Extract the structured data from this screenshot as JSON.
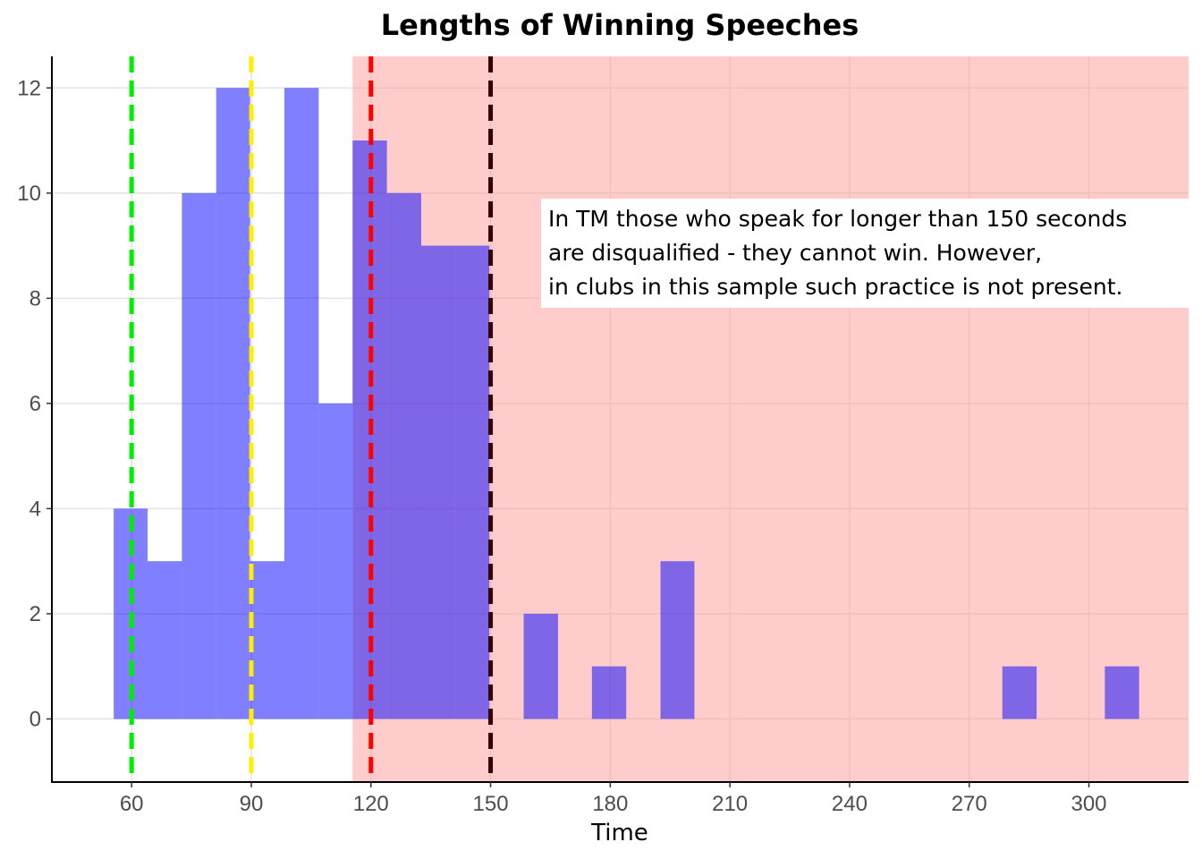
{
  "chart_data": {
    "type": "bar",
    "title": "Lengths of Winning Speeches",
    "xlabel": "Time",
    "ylabel": "",
    "xlim": [
      40,
      325
    ],
    "ylim": [
      -1.2,
      12.6
    ],
    "x_ticks": [
      60,
      90,
      120,
      150,
      180,
      210,
      240,
      270,
      300
    ],
    "y_ticks": [
      0,
      2,
      4,
      6,
      8,
      10,
      12
    ],
    "grid": true,
    "bins": [
      {
        "start": 55.5,
        "end": 64.0,
        "count": 4
      },
      {
        "start": 64.0,
        "end": 72.6,
        "count": 3
      },
      {
        "start": 72.6,
        "end": 81.2,
        "count": 10
      },
      {
        "start": 81.2,
        "end": 89.7,
        "count": 12
      },
      {
        "start": 89.7,
        "end": 98.3,
        "count": 3
      },
      {
        "start": 98.3,
        "end": 106.9,
        "count": 12
      },
      {
        "start": 106.9,
        "end": 115.4,
        "count": 6
      },
      {
        "start": 115.4,
        "end": 124.0,
        "count": 11
      },
      {
        "start": 124.0,
        "end": 132.6,
        "count": 10
      },
      {
        "start": 132.6,
        "end": 141.1,
        "count": 9
      },
      {
        "start": 141.1,
        "end": 149.7,
        "count": 9
      },
      {
        "start": 149.7,
        "end": 158.3,
        "count": 0
      },
      {
        "start": 158.3,
        "end": 166.9,
        "count": 2
      },
      {
        "start": 166.9,
        "end": 175.4,
        "count": 0
      },
      {
        "start": 175.4,
        "end": 184.0,
        "count": 1
      },
      {
        "start": 184.0,
        "end": 192.6,
        "count": 0
      },
      {
        "start": 192.6,
        "end": 201.1,
        "count": 3
      },
      {
        "start": 278.3,
        "end": 286.9,
        "count": 1
      },
      {
        "start": 304.0,
        "end": 312.6,
        "count": 1
      }
    ],
    "shaded_region": {
      "from": 115.4,
      "to": 325,
      "color": "#ff9999"
    },
    "reference_lines": [
      {
        "x": 60,
        "color": "#00ee00"
      },
      {
        "x": 90,
        "color": "#ffee00"
      },
      {
        "x": 120,
        "color": "#ff0000"
      },
      {
        "x": 150,
        "color": "#330000"
      }
    ],
    "annotation": {
      "lines": [
        "In TM those who speak for longer than 150 seconds",
        "are disqualified - they cannot win. However,",
        "in clubs in this sample such practice is not present."
      ]
    },
    "colors": {
      "bar": "#0000ff",
      "grid": "#e5e5e5"
    }
  }
}
